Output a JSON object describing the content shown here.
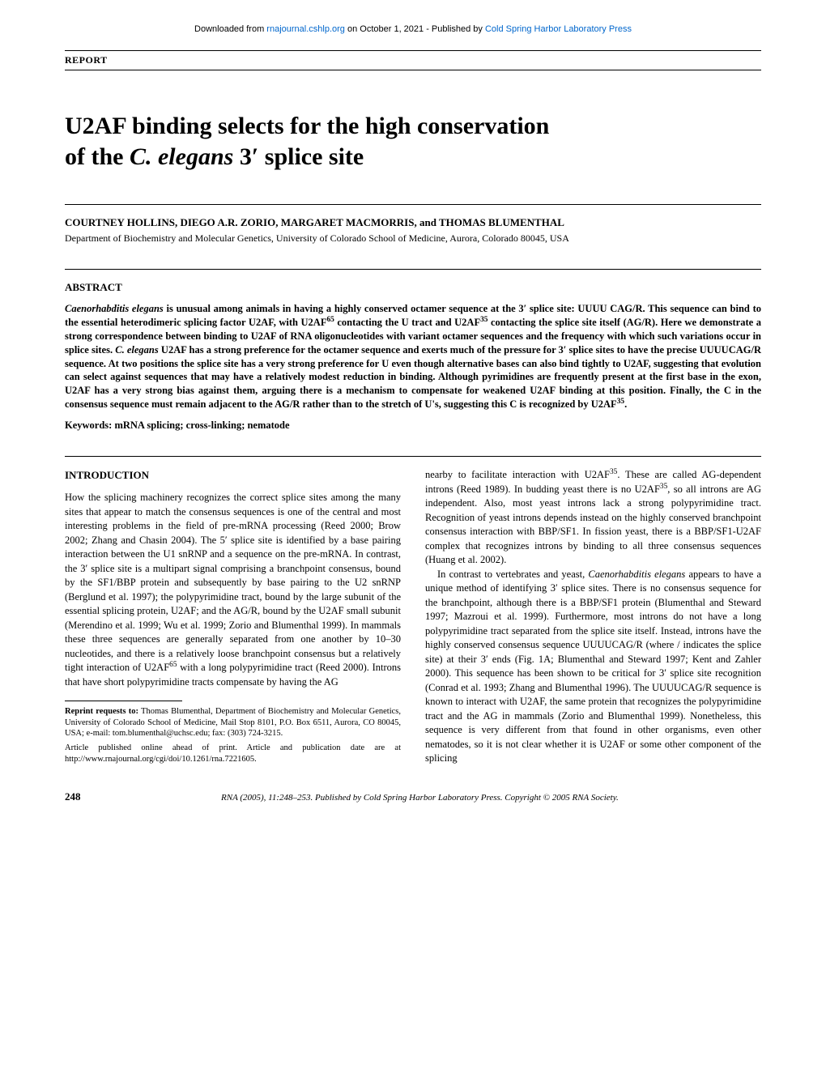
{
  "download": {
    "prefix": "Downloaded from ",
    "link1": "rnajournal.cshlp.org",
    "mid": " on October 1, 2021 - Published by ",
    "link2": "Cold Spring Harbor Laboratory Press"
  },
  "report_label": "REPORT",
  "title_line1": "U2AF binding selects for the high conservation",
  "title_line2_pre": "of the ",
  "title_line2_italic": "C. elegans",
  "title_line2_post": " 3′ splice site",
  "authors": "COURTNEY HOLLINS, DIEGO A.R. ZORIO, MARGARET MACMORRIS, and THOMAS BLUMENTHAL",
  "affiliation": "Department of Biochemistry and Molecular Genetics, University of Colorado School of Medicine, Aurora, Colorado 80045, USA",
  "abstract_heading": "ABSTRACT",
  "abstract_body_html": "<span class=\"italic\">Caenorhabditis elegans</span> is unusual among animals in having a highly conserved octamer sequence at the 3′ splice site: UUUU CAG/R. This sequence can bind to the essential heterodimeric splicing factor U2AF, with U2AF<sup>65</sup> contacting the U tract and U2AF<sup>35</sup> contacting the splice site itself (AG/R). Here we demonstrate a strong correspondence between binding to U2AF of RNA oligonucleotides with variant octamer sequences and the frequency with which such variations occur in splice sites. <span class=\"italic\">C. elegans</span> U2AF has a strong preference for the octamer sequence and exerts much of the pressure for 3′ splice sites to have the precise UUUUCAG/R sequence. At two positions the splice site has a very strong preference for U even though alternative bases can also bind tightly to U2AF, suggesting that evolution can select against sequences that may have a relatively modest reduction in binding. Although pyrimidines are frequently present at the first base in the exon, U2AF has a very strong bias against them, arguing there is a mechanism to compensate for weakened U2AF binding at this position. Finally, the C in the consensus sequence must remain adjacent to the AG/R rather than to the stretch of U's, suggesting this C is recognized by U2AF<sup>35</sup>.",
  "keywords": "Keywords: mRNA splicing; cross-linking; nematode",
  "intro_heading": "INTRODUCTION",
  "col1_p1_html": "How the splicing machinery recognizes the correct splice sites among the many sites that appear to match the consensus sequences is one of the central and most interesting problems in the field of pre-mRNA processing (Reed 2000; Brow 2002; Zhang and Chasin 2004). The 5′ splice site is identified by a base pairing interaction between the U1 snRNP and a sequence on the pre-mRNA. In contrast, the 3′ splice site is a multipart signal comprising a branchpoint consensus, bound by the SF1/BBP protein and subsequently by base pairing to the U2 snRNP (Berglund et al. 1997); the polypyrimidine tract, bound by the large subunit of the essential splicing protein, U2AF; and the AG/R, bound by the U2AF small subunit (Merendino et al. 1999; Wu et al. 1999; Zorio and Blumenthal 1999). In mammals these three sequences are generally separated from one another by 10–30 nucleotides, and there is a relatively loose branchpoint consensus but a relatively tight interaction of U2AF<sup>65</sup> with a long polypyrimidine tract (Reed 2000). Introns that have short polypyrimidine tracts compensate by having the AG",
  "footnote1_html": "<b>Reprint requests to:</b> Thomas Blumenthal, Department of Biochemistry and Molecular Genetics, University of Colorado School of Medicine, Mail Stop 8101, P.O. Box 6511, Aurora, CO 80045, USA; e-mail: tom.blumenthal@uchsc.edu; fax: (303) 724-3215.",
  "footnote2_html": "Article published online ahead of print. Article and publication date are at http://www.rnajournal.org/cgi/doi/10.1261/rna.7221605.",
  "col2_p1_html": "nearby to facilitate interaction with U2AF<sup>35</sup>. These are called AG-dependent introns (Reed 1989). In budding yeast there is no U2AF<sup>35</sup>, so all introns are AG independent. Also, most yeast introns lack a strong polypyrimidine tract. Recognition of yeast introns depends instead on the highly conserved branchpoint consensus interaction with BBP/SF1. In fission yeast, there is a BBP/SF1-U2AF complex that recognizes introns by binding to all three consensus sequences (Huang et al. 2002).",
  "col2_p2_html": "In contrast to vertebrates and yeast, <span class=\"italic\">Caenorhabditis elegans</span> appears to have a unique method of identifying 3′ splice sites. There is no consensus sequence for the branchpoint, although there is a BBP/SF1 protein (Blumenthal and Steward 1997; Mazroui et al. 1999). Furthermore, most introns do not have a long polypyrimidine tract separated from the splice site itself. Instead, introns have the highly conserved consensus sequence UUUUCAG/R (where / indicates the splice site) at their 3′ ends (Fig. 1A; Blumenthal and Steward 1997; Kent and Zahler 2000). This sequence has been shown to be critical for 3′ splice site recognition (Conrad et al. 1993; Zhang and Blumenthal 1996). The UUUUCAG/R sequence is known to interact with U2AF, the same protein that recognizes the polypyrimidine tract and the AG in mammals (Zorio and Blumenthal 1999). Nonetheless, this sequence is very different from that found in other organisms, even other nematodes, so it is not clear whether it is U2AF or some other component of the splicing",
  "footer": {
    "page": "248",
    "center_html": "<span class=\"italic\">RNA</span> (2005), 11:248–253. Published by Cold Spring Harbor Laboratory Press. Copyright © 2005 RNA Society."
  }
}
